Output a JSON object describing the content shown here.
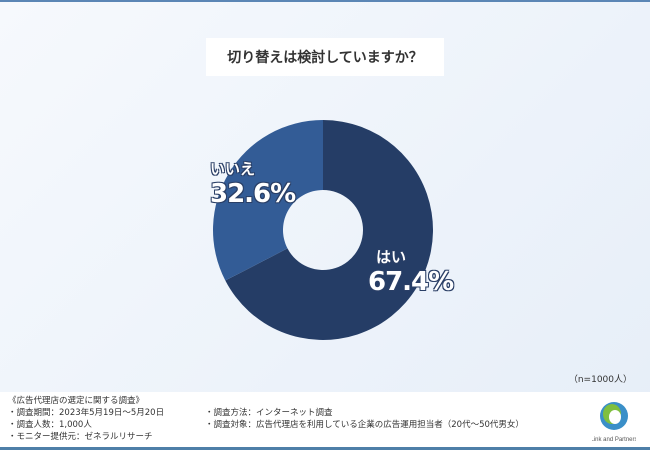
{
  "chart_data": {
    "type": "pie",
    "title": "切り替えは検討していますか？",
    "categories": [
      "はい",
      "いいえ"
    ],
    "values": [
      67.4,
      32.6
    ],
    "value_labels": [
      "67.4%",
      "32.6%"
    ],
    "colors": [
      "#253d66",
      "#335c96"
    ],
    "donut": true,
    "sample": "（n=1000人）"
  },
  "footer": {
    "heading": "《広告代理店の選定に関する調査》",
    "period": "・調査期間：2023年5月19日～5月20日",
    "count": "・調査人数：1,000人",
    "provider": "・モニター提供元：ゼネラルリサーチ",
    "method": "・調査方法：インターネット調査",
    "target": "・調査対象：広告代理店を利用している企業の広告運用担当者（20代～50代男女）",
    "logo_text": "LinkandPartners"
  }
}
